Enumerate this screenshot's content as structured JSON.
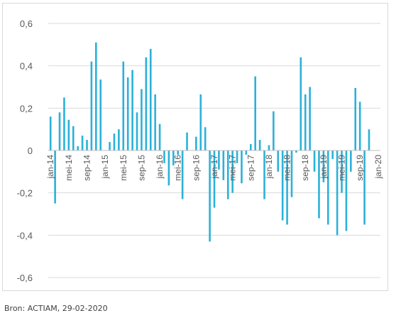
{
  "source_note": "Bron: ACTIAM, 29-02-2020",
  "chart_data": {
    "type": "bar",
    "ylim": [
      -0.6,
      0.6
    ],
    "yticks": [
      "0,6",
      "0,4",
      "0,2",
      "0",
      "-0,2",
      "-0,4",
      "-0,6"
    ],
    "ytick_values": [
      0.6,
      0.4,
      0.2,
      0,
      -0.2,
      -0.4,
      -0.6
    ],
    "grid": true,
    "bar_color": "#2bb1d9",
    "grid_color": "#d9d9d9",
    "x_labels": [
      {
        "index": 0,
        "label": "jan-14"
      },
      {
        "index": 4,
        "label": "mei-14"
      },
      {
        "index": 8,
        "label": "sep-14"
      },
      {
        "index": 12,
        "label": "jan-15"
      },
      {
        "index": 16,
        "label": "mei-15"
      },
      {
        "index": 20,
        "label": "sep-15"
      },
      {
        "index": 24,
        "label": "jan-16"
      },
      {
        "index": 28,
        "label": "mei-16"
      },
      {
        "index": 32,
        "label": "sep-16"
      },
      {
        "index": 36,
        "label": "jan-17"
      },
      {
        "index": 40,
        "label": "mei-17"
      },
      {
        "index": 44,
        "label": "sep-17"
      },
      {
        "index": 48,
        "label": "jan-18"
      },
      {
        "index": 52,
        "label": "mei-18"
      },
      {
        "index": 56,
        "label": "sep-18"
      },
      {
        "index": 60,
        "label": "jan-19"
      },
      {
        "index": 64,
        "label": "mei-19"
      },
      {
        "index": 68,
        "label": "sep-19"
      },
      {
        "index": 72,
        "label": "jan-20"
      }
    ],
    "values": [
      0.16,
      -0.25,
      0.18,
      0.25,
      0.145,
      0.115,
      0.02,
      0.07,
      0.05,
      0.42,
      0.51,
      0.335,
      0.0,
      0.04,
      0.08,
      0.1,
      0.42,
      0.345,
      0.38,
      0.18,
      0.29,
      0.44,
      0.48,
      0.265,
      0.125,
      -0.06,
      -0.165,
      -0.07,
      -0.02,
      -0.23,
      0.085,
      0.0,
      0.065,
      0.265,
      0.11,
      -0.43,
      -0.27,
      -0.09,
      -0.14,
      -0.23,
      -0.2,
      -0.06,
      -0.155,
      -0.02,
      0.03,
      0.35,
      0.05,
      -0.23,
      0.025,
      0.185,
      -0.1,
      -0.33,
      -0.35,
      -0.22,
      -0.01,
      0.44,
      0.265,
      0.3,
      -0.1,
      -0.32,
      -0.15,
      -0.35,
      -0.04,
      -0.4,
      -0.2,
      -0.38,
      -0.1,
      0.295,
      0.23,
      -0.35,
      0.1
    ]
  }
}
